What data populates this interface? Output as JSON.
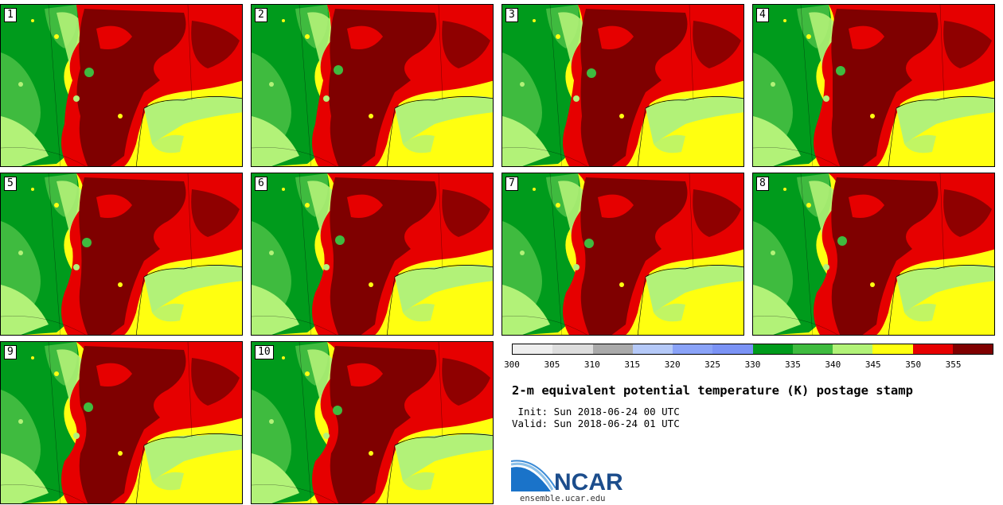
{
  "panels": [
    {
      "label": "1"
    },
    {
      "label": "2"
    },
    {
      "label": "3"
    },
    {
      "label": "4"
    },
    {
      "label": "5"
    },
    {
      "label": "6"
    },
    {
      "label": "7"
    },
    {
      "label": "8"
    },
    {
      "label": "9"
    },
    {
      "label": "10"
    }
  ],
  "colorbar": {
    "colors": [
      "#eeeeee",
      "#dddddd",
      "#aaaaaa",
      "#b5c9f8",
      "#8aa3f8",
      "#7b93f5",
      "#009b1c",
      "#3fbb3f",
      "#b2f278",
      "#ffff10",
      "#e60000",
      "#7f0000"
    ],
    "labels": [
      "300",
      "305",
      "310",
      "315",
      "320",
      "325",
      "330",
      "335",
      "340",
      "345",
      "350",
      "355"
    ]
  },
  "title": "2-m equivalent potential temperature (K) postage stamp",
  "init": " Init: Sun 2018-06-24 00 UTC",
  "valid": "Valid: Sun 2018-06-24 01 UTC",
  "logo": {
    "text": "NCAR",
    "color": "#1c4d8c"
  },
  "url": "ensemble.ucar.edu"
}
